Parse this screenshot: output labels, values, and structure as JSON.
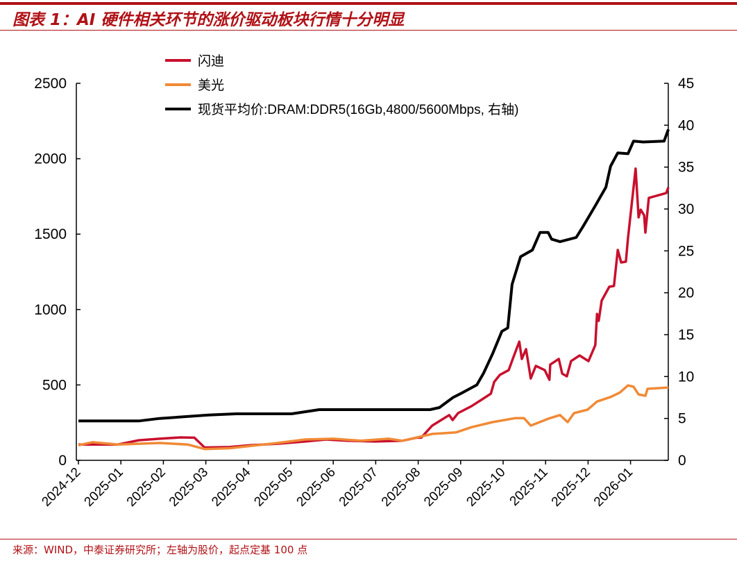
{
  "title": "图表 1：AI 硬件相关环节的涨价驱动板块行情十分明显",
  "footer": "来源：WIND，中泰证券研究所；左轴为股价，起点定基 100 点",
  "chart_data": {
    "type": "line",
    "title": "图表 1：AI 硬件相关环节的涨价驱动板块行情十分明显",
    "x_unit": "months since 2024-12",
    "x_ticks": [
      "2024-12",
      "2025-01",
      "2025-02",
      "2025-03",
      "2025-04",
      "2025-05",
      "2025-06",
      "2025-07",
      "2025-08",
      "2025-09",
      "2025-10",
      "2025-11",
      "2025-12",
      "2026-01"
    ],
    "y_left": {
      "range": [
        0,
        2500
      ],
      "ticks": [
        0,
        500,
        1000,
        1500,
        2000,
        2500
      ]
    },
    "y_right": {
      "range": [
        0,
        45
      ],
      "ticks": [
        0,
        5,
        10,
        15,
        20,
        25,
        30,
        35,
        40,
        45
      ]
    },
    "legend_placement": "top-left",
    "grid": false,
    "series": [
      {
        "name": "闪迪",
        "axis": "left",
        "color": "#c8102e",
        "points": [
          [
            0,
            105
          ],
          [
            0.93,
            105
          ],
          [
            1.42,
            133
          ],
          [
            1.91,
            143
          ],
          [
            2.4,
            152
          ],
          [
            2.73,
            150
          ],
          [
            2.97,
            85
          ],
          [
            3.55,
            88
          ],
          [
            4.04,
            100
          ],
          [
            4.69,
            110
          ],
          [
            5.34,
            125
          ],
          [
            5.83,
            138
          ],
          [
            6.32,
            130
          ],
          [
            6.98,
            125
          ],
          [
            7.63,
            130
          ],
          [
            7.96,
            150
          ],
          [
            8.07,
            150
          ],
          [
            8.33,
            230
          ],
          [
            8.73,
            300
          ],
          [
            8.81,
            267
          ],
          [
            8.94,
            313
          ],
          [
            9.26,
            360
          ],
          [
            9.51,
            405
          ],
          [
            9.71,
            442
          ],
          [
            9.79,
            520
          ],
          [
            9.92,
            566
          ],
          [
            10.13,
            598
          ],
          [
            10.25,
            690
          ],
          [
            10.38,
            787
          ],
          [
            10.44,
            672
          ],
          [
            10.54,
            737
          ],
          [
            10.65,
            543
          ],
          [
            10.77,
            626
          ],
          [
            10.98,
            598
          ],
          [
            11.09,
            534
          ],
          [
            11.11,
            635
          ],
          [
            11.31,
            672
          ],
          [
            11.39,
            575
          ],
          [
            11.5,
            557
          ],
          [
            11.6,
            658
          ],
          [
            11.8,
            695
          ],
          [
            12.01,
            658
          ],
          [
            12.17,
            764
          ],
          [
            12.21,
            971
          ],
          [
            12.25,
            925
          ],
          [
            12.32,
            1059
          ],
          [
            12.5,
            1151
          ],
          [
            12.61,
            1156
          ],
          [
            12.7,
            1395
          ],
          [
            12.78,
            1312
          ],
          [
            12.89,
            1317
          ],
          [
            12.94,
            1473
          ],
          [
            13.12,
            1934
          ],
          [
            13.19,
            1611
          ],
          [
            13.24,
            1662
          ],
          [
            13.32,
            1625
          ],
          [
            13.35,
            1510
          ],
          [
            13.43,
            1740
          ],
          [
            13.84,
            1772
          ],
          [
            13.89,
            1810
          ]
        ]
      },
      {
        "name": "美光",
        "axis": "left",
        "color": "#f08a36",
        "points": [
          [
            0,
            100
          ],
          [
            0.33,
            120
          ],
          [
            0.93,
            105
          ],
          [
            1.42,
            110
          ],
          [
            1.91,
            115
          ],
          [
            2.57,
            105
          ],
          [
            2.97,
            75
          ],
          [
            3.55,
            80
          ],
          [
            4.04,
            95
          ],
          [
            4.69,
            115
          ],
          [
            5.34,
            138
          ],
          [
            6.0,
            143
          ],
          [
            6.65,
            130
          ],
          [
            7.3,
            143
          ],
          [
            7.63,
            130
          ],
          [
            8.33,
            175
          ],
          [
            8.89,
            185
          ],
          [
            9.26,
            220
          ],
          [
            9.75,
            253
          ],
          [
            10.29,
            280
          ],
          [
            10.49,
            280
          ],
          [
            10.65,
            230
          ],
          [
            11.06,
            276
          ],
          [
            11.34,
            300
          ],
          [
            11.52,
            253
          ],
          [
            11.67,
            313
          ],
          [
            11.99,
            336
          ],
          [
            12.21,
            390
          ],
          [
            12.53,
            420
          ],
          [
            12.75,
            450
          ],
          [
            12.94,
            497
          ],
          [
            13.07,
            488
          ],
          [
            13.19,
            437
          ],
          [
            13.35,
            428
          ],
          [
            13.4,
            474
          ],
          [
            13.89,
            483
          ]
        ]
      },
      {
        "name": "现货平均价:DRAM:DDR5(16Gb,4800/5600Mbps, 右轴)",
        "axis": "right",
        "color": "#000000",
        "points": [
          [
            0,
            4.7
          ],
          [
            1.42,
            4.7
          ],
          [
            1.91,
            5.0
          ],
          [
            3.06,
            5.4
          ],
          [
            3.71,
            5.55
          ],
          [
            5.02,
            5.55
          ],
          [
            5.67,
            6.05
          ],
          [
            7.63,
            6.05
          ],
          [
            8.28,
            6.05
          ],
          [
            8.5,
            6.3
          ],
          [
            8.82,
            7.5
          ],
          [
            9.05,
            8.1
          ],
          [
            9.38,
            9.0
          ],
          [
            9.54,
            10.4
          ],
          [
            9.75,
            12.7
          ],
          [
            9.97,
            15.4
          ],
          [
            10.11,
            15.8
          ],
          [
            10.21,
            21.0
          ],
          [
            10.41,
            24.3
          ],
          [
            10.69,
            25.1
          ],
          [
            10.87,
            27.2
          ],
          [
            11.06,
            27.2
          ],
          [
            11.14,
            26.4
          ],
          [
            11.34,
            26.1
          ],
          [
            11.72,
            26.6
          ],
          [
            11.88,
            27.9
          ],
          [
            12.16,
            30.3
          ],
          [
            12.42,
            32.6
          ],
          [
            12.53,
            35.1
          ],
          [
            12.7,
            36.7
          ],
          [
            12.94,
            36.6
          ],
          [
            13.07,
            38.1
          ],
          [
            13.3,
            38.0
          ],
          [
            13.79,
            38.1
          ],
          [
            13.89,
            39.5
          ]
        ]
      }
    ]
  }
}
